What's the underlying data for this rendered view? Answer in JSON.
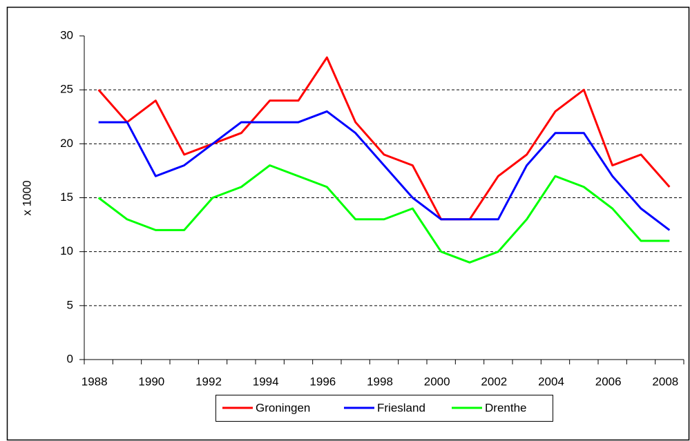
{
  "chart_data": {
    "type": "line",
    "y_label": "x 1000",
    "categories": [
      "1988",
      null,
      "1990",
      null,
      "1992",
      null,
      "1994",
      null,
      "1996",
      null,
      "1998",
      null,
      "2000",
      null,
      "2002",
      null,
      "2004",
      null,
      "2006",
      null,
      "2008"
    ],
    "series": [
      {
        "name": "Groningen",
        "color": "#ff0000",
        "values": [
          25,
          22,
          24,
          19,
          20,
          21,
          24,
          24,
          28,
          22,
          19,
          18,
          13,
          13,
          17,
          19,
          23,
          25,
          18,
          19,
          16
        ]
      },
      {
        "name": "Friesland",
        "color": "#0000ff",
        "values": [
          22,
          22,
          17,
          18,
          20,
          22,
          22,
          22,
          23,
          21,
          18,
          15,
          13,
          13,
          13,
          18,
          21,
          21,
          17,
          14,
          12
        ]
      },
      {
        "name": "Drenthe",
        "color": "#00ff00",
        "values": [
          15,
          13,
          12,
          12,
          15,
          16,
          18,
          17,
          16,
          13,
          13,
          14,
          10,
          9,
          10,
          13,
          17,
          16,
          14,
          11,
          11
        ]
      }
    ],
    "ylim": [
      0,
      30
    ],
    "yticks": [
      0,
      5,
      10,
      15,
      20,
      25,
      30
    ],
    "grid": true,
    "legend": "bottom"
  }
}
